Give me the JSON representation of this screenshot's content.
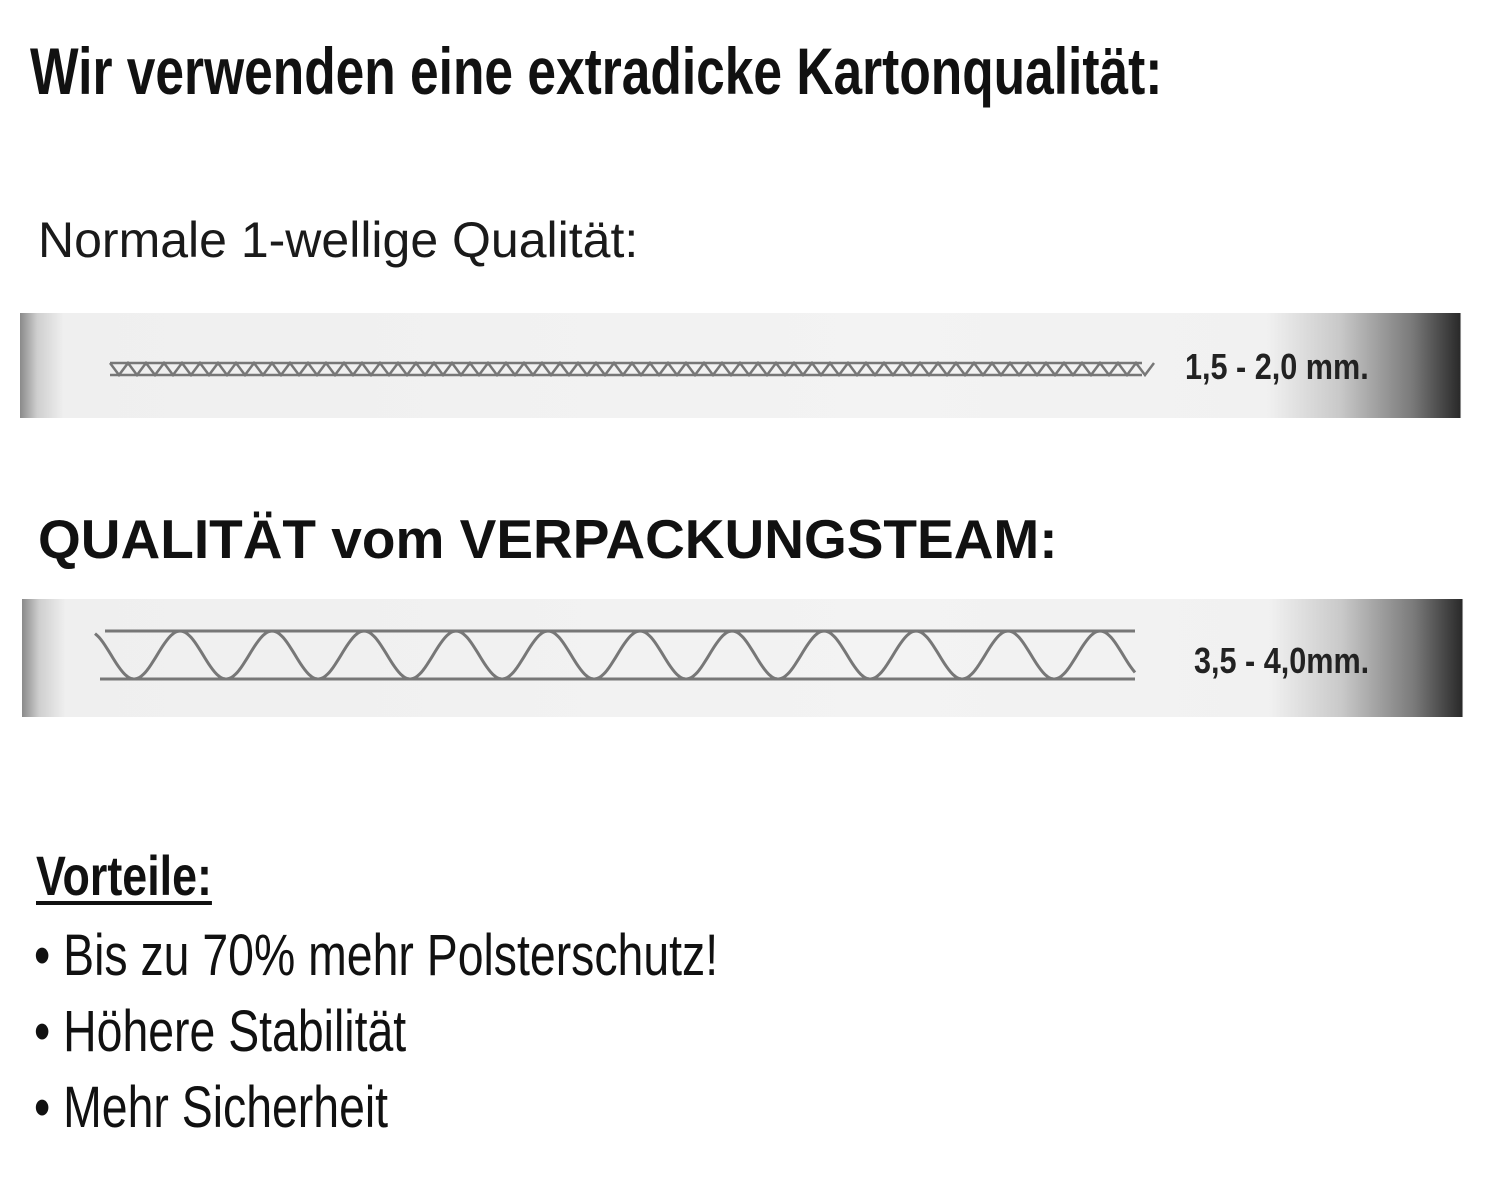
{
  "title": "Wir verwenden eine extradicke Kartonqualität:",
  "normal": {
    "heading": "Normale 1-wellige Qualität:",
    "thickness": "1,5 - 2,0 mm."
  },
  "premium": {
    "heading": "QUALITÄT vom VERPACKUNGSTEAM:",
    "thickness": "3,5 - 4,0mm."
  },
  "advantages": {
    "heading": "Vorteile:",
    "items": [
      "• Bis zu 70% mehr Polsterschutz!",
      "• Höhere Stabilität",
      "• Mehr Sicherheit"
    ]
  },
  "colors": {
    "text": "#111111",
    "flute_line": "#777777"
  }
}
